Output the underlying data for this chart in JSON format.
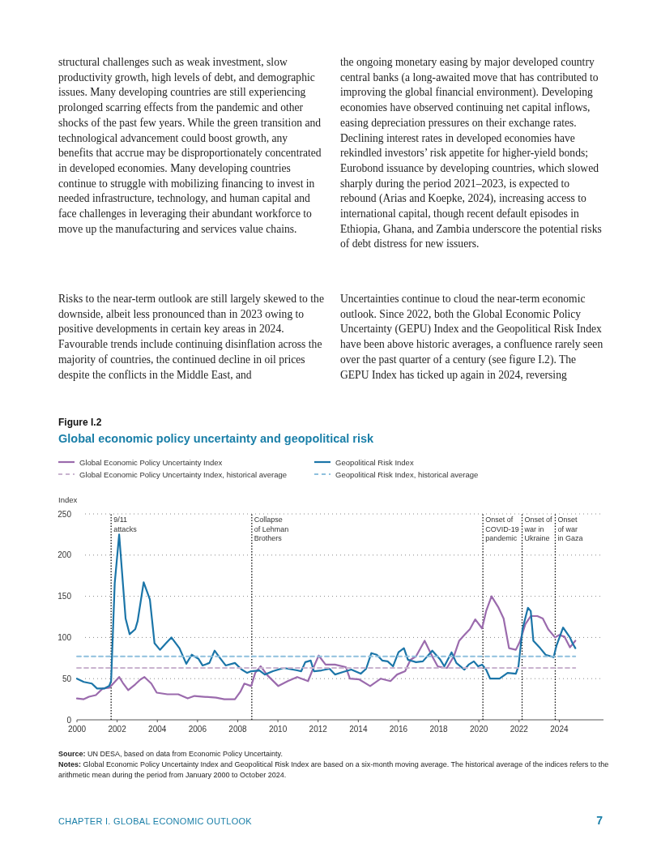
{
  "chart_data": {
    "type": "line",
    "title": "Global economic policy uncertainty and geopolitical risk",
    "ylabel": "Index",
    "xlim": [
      2000,
      2026.2
    ],
    "xticks": [
      2000,
      2002,
      2004,
      2006,
      2008,
      2010,
      2012,
      2014,
      2016,
      2018,
      2020,
      2022,
      2024
    ],
    "ylim": [
      0,
      250
    ],
    "yticks": [
      0,
      50,
      100,
      150,
      200,
      250
    ],
    "grid": "y",
    "legend": "top",
    "line_style": "solid",
    "series": [
      {
        "name": "Global Economic Policy Uncertainty Index",
        "color": "#9b6bad",
        "x": [
          2000,
          2000.34,
          2000.6,
          2000.94,
          2001.28,
          2001.61,
          2001.88,
          2002.1,
          2002.28,
          2002.55,
          2002.9,
          2003.16,
          2003.36,
          2003.7,
          2003.97,
          2004.5,
          2005.04,
          2005.51,
          2005.85,
          2006.32,
          2006.92,
          2007.33,
          2007.86,
          2008.13,
          2008.33,
          2008.67,
          2008.87,
          2009.14,
          2009.48,
          2010.02,
          2010.49,
          2010.96,
          2011.5,
          2011.83,
          2012.03,
          2012.37,
          2012.84,
          2013.38,
          2013.58,
          2014.05,
          2014.59,
          2015.12,
          2015.6,
          2015.93,
          2016.33,
          2016.6,
          2016.87,
          2017.3,
          2017.68,
          2017.95,
          2018.28,
          2018.41,
          2018.75,
          2019.02,
          2019.28,
          2019.55,
          2019.82,
          2020.16,
          2020.36,
          2020.63,
          2020.96,
          2021.23,
          2021.5,
          2021.84,
          2022.04,
          2022.31,
          2022.58,
          2022.91,
          2023.18,
          2023.45,
          2023.79,
          2023.99,
          2024.26,
          2024.53,
          2024.8
        ],
        "values": [
          26,
          25,
          28,
          30,
          38,
          39,
          46,
          52,
          45,
          36,
          43,
          49,
          52,
          44,
          33,
          31,
          31,
          26,
          29,
          28,
          27,
          25,
          25,
          34,
          44,
          41,
          57,
          65,
          54,
          41,
          47,
          52,
          47,
          67,
          78,
          67,
          67,
          64,
          50,
          49,
          41,
          50,
          47,
          55,
          59,
          73,
          77,
          96,
          77,
          65,
          63,
          63,
          77,
          96,
          103,
          110,
          122,
          111,
          132,
          150,
          137,
          123,
          87,
          85,
          95,
          116,
          126,
          126,
          123,
          110,
          100,
          103,
          101,
          88,
          96
        ]
      },
      {
        "name": "Geopolitical Risk Index",
        "color": "#1b75a8",
        "x": [
          2000,
          2000.34,
          2000.74,
          2001.0,
          2001.35,
          2001.6,
          2001.7,
          2001.88,
          2002.1,
          2002.42,
          2002.62,
          2002.9,
          2003.02,
          2003.32,
          2003.63,
          2003.86,
          2004.13,
          2004.43,
          2004.7,
          2005.1,
          2005.44,
          2005.71,
          2006.05,
          2006.25,
          2006.59,
          2006.85,
          2007.12,
          2007.4,
          2007.86,
          2008.2,
          2008.47,
          2008.67,
          2009.08,
          2009.35,
          2009.75,
          2010.29,
          2010.96,
          2011.16,
          2011.36,
          2011.63,
          2011.79,
          2012.17,
          2012.57,
          2012.84,
          2013.24,
          2013.65,
          2014.12,
          2014.39,
          2014.65,
          2014.92,
          2015.19,
          2015.46,
          2015.73,
          2016.0,
          2016.27,
          2016.47,
          2016.87,
          2017.21,
          2017.68,
          2018.08,
          2018.28,
          2018.64,
          2018.88,
          2019.28,
          2019.49,
          2019.75,
          2019.96,
          2020.16,
          2020.36,
          2020.56,
          2021.03,
          2021.43,
          2021.84,
          2021.97,
          2022.17,
          2022.44,
          2022.58,
          2022.71,
          2023.05,
          2023.32,
          2023.72,
          2023.86,
          2024.19,
          2024.53,
          2024.66,
          2024.8
        ],
        "values": [
          50,
          46,
          44,
          38,
          38,
          41,
          47,
          166,
          225,
          123,
          104,
          110,
          120,
          167,
          146,
          93,
          85,
          93,
          100,
          87,
          68,
          79,
          74,
          66,
          69,
          84,
          75,
          66,
          69,
          61,
          57,
          59,
          60,
          55,
          59,
          63,
          60,
          59,
          70,
          72,
          59,
          60,
          62,
          55,
          58,
          61,
          56,
          62,
          81,
          79,
          72,
          71,
          65,
          82,
          87,
          73,
          70,
          71,
          84,
          73,
          65,
          82,
          69,
          61,
          67,
          71,
          65,
          67,
          61,
          50,
          50,
          57,
          56,
          65,
          110,
          136,
          132,
          96,
          87,
          79,
          76,
          90,
          112,
          100,
          93,
          87
        ]
      },
      {
        "name": "Global Economic Policy Uncertainty Index, historical average",
        "color": "#c9b3cf",
        "line_style": "dashed",
        "x": [
          2000,
          2024.8
        ],
        "values": [
          63,
          63
        ]
      },
      {
        "name": "Geopolitical Risk Index, historical average",
        "color": "#8ec0dd",
        "line_style": "dashed",
        "x": [
          2000,
          2024.8
        ],
        "values": [
          77,
          77
        ]
      }
    ],
    "ref_lines": [
      {
        "axis": "x",
        "value": 2001.7,
        "label": "9/11\nattacks"
      },
      {
        "axis": "x",
        "value": 2008.7,
        "label": "Collapse\nof Lehman\nBrothers"
      },
      {
        "axis": "x",
        "value": 2020.2,
        "label": "Onset of\nCOVID-19\npandemic"
      },
      {
        "axis": "x",
        "value": 2022.15,
        "label": "Onset of\nwar in\nUkraine"
      },
      {
        "axis": "x",
        "value": 2023.8,
        "label": "Onset\nof war\nin Gaza"
      }
    ],
    "annotations": [
      "Figure I.2",
      "Source: UN DESA, based on data from Economic Policy Uncertainty.",
      "Notes: Global Economic Policy Uncertainty Index and Geopolitical Risk Index are based on a six-month moving average. The historical average of the indices refers to the arithmetic mean during the period from January 2000 to October 2024.",
      "CHAPTER I. GLOBAL ECONOMIC OUTLOOK",
      "7",
      "structural challenges such as weak investment, slow productivity growth, high levels of debt, and demographic issues. Many developing countries are still experiencing prolonged scarring effects from the pandemic and other shocks of the past few years. While the green transition and technological advancement could boost growth, any benefits that accrue may be disproportionately concentrated in developed economies. Many developing countries continue to struggle with mobilizing financing to invest in needed infrastructure, technology, and human capital and face challenges in leveraging their abundant workforce to move up the manufacturing and services value chains.",
      "Risks to the near-term outlook are still largely skewed to the downside, albeit less pronounced than in 2023 owing to positive developments in certain key areas in 2024. Favourable trends include continuing disinflation across the majority of countries, the continued decline in oil prices despite the conflicts in the Middle East, and",
      "the ongoing monetary easing by major developed country central banks (a long-awaited move that has contributed to improving the global financial environment). Developing economies have observed continuing net capital inflows, easing depreciation pressures on their exchange rates. Declining interest rates in developed economies have rekindled investors’ risk appetite for higher-yield bonds; Eurobond issuance by developing countries, which slowed sharply during the period 2021–2023, is expected to rebound (Arias and Koepke, 2024), increasing access to international capital, though recent default episodes in Ethiopia, Ghana, and Zambia underscore the potential risks of debt distress for new issuers.",
      "Uncertainties continue to cloud the near-term economic outlook. Since 2022, both the Global Economic Policy Uncertainty (GEPU) Index and the Geopolitical Risk Index have been above historic averages, a confluence rarely seen over the past quarter of a century (see figure I.2). The GEPU Index has ticked up again in 2024, reversing"
    ]
  }
}
